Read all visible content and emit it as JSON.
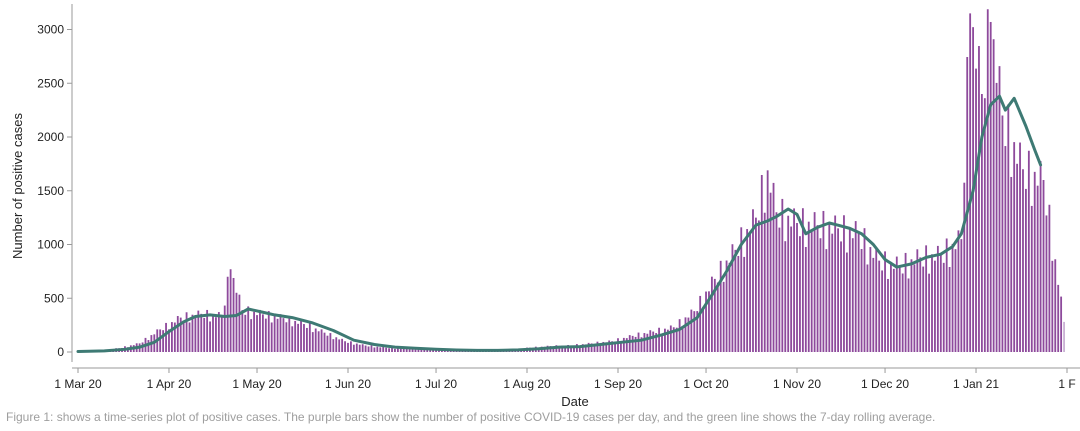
{
  "chart_data": {
    "type": "bar",
    "xlabel": "Date",
    "ylabel": "Number of positive cases",
    "ylim": [
      0,
      3200
    ],
    "y_ticks": [
      0,
      500,
      1000,
      1500,
      2000,
      2500,
      3000
    ],
    "x_range": [
      "2020-03-01",
      "2021-02-01"
    ],
    "x_ticks": [
      {
        "date": "2020-03-01",
        "label": "1 Mar 20"
      },
      {
        "date": "2020-04-01",
        "label": "1 Apr 20"
      },
      {
        "date": "2020-05-01",
        "label": "1 May 20"
      },
      {
        "date": "2020-06-01",
        "label": "1 Jun 20"
      },
      {
        "date": "2020-07-01",
        "label": "1 Jul 20"
      },
      {
        "date": "2020-08-01",
        "label": "1 Aug 20"
      },
      {
        "date": "2020-09-01",
        "label": "1 Sep 20"
      },
      {
        "date": "2020-10-01",
        "label": "1 Oct 20"
      },
      {
        "date": "2020-11-01",
        "label": "1 Nov 20"
      },
      {
        "date": "2020-12-01",
        "label": "1 Dec 20"
      },
      {
        "date": "2021-01-01",
        "label": "1 Jan 21"
      },
      {
        "date": "2021-02-01",
        "label": "1 F"
      }
    ],
    "bar_color": "#8e4a9c",
    "incomplete_bar_color": "#c9b2d3",
    "line_color": "#3e7a74",
    "series": [
      {
        "type": "bar",
        "points": [
          [
            "2020-03-01",
            5
          ],
          [
            "2020-03-08",
            15
          ],
          [
            "2020-03-15",
            35
          ],
          [
            "2020-03-22",
            80
          ],
          [
            "2020-03-29",
            210
          ],
          [
            "2020-04-05",
            320
          ],
          [
            "2020-04-12",
            355
          ],
          [
            "2020-04-19",
            335
          ],
          [
            "2020-04-22",
            770
          ],
          [
            "2020-04-26",
            390
          ],
          [
            "2020-05-03",
            350
          ],
          [
            "2020-05-10",
            315
          ],
          [
            "2020-05-17",
            260
          ],
          [
            "2020-05-24",
            180
          ],
          [
            "2020-05-31",
            100
          ],
          [
            "2020-06-07",
            60
          ],
          [
            "2020-06-14",
            40
          ],
          [
            "2020-06-21",
            30
          ],
          [
            "2020-06-28",
            25
          ],
          [
            "2020-07-05",
            20
          ],
          [
            "2020-07-12",
            18
          ],
          [
            "2020-07-19",
            18
          ],
          [
            "2020-07-26",
            20
          ],
          [
            "2020-08-02",
            40
          ],
          [
            "2020-08-09",
            55
          ],
          [
            "2020-08-16",
            60
          ],
          [
            "2020-08-23",
            80
          ],
          [
            "2020-08-30",
            100
          ],
          [
            "2020-09-06",
            150
          ],
          [
            "2020-09-13",
            190
          ],
          [
            "2020-09-20",
            230
          ],
          [
            "2020-09-27",
            380
          ],
          [
            "2020-10-04",
            680
          ],
          [
            "2020-10-11",
            950
          ],
          [
            "2020-10-18",
            1250
          ],
          [
            "2020-10-22",
            1690
          ],
          [
            "2020-10-25",
            1300
          ],
          [
            "2020-11-01",
            1200
          ],
          [
            "2020-11-08",
            1180
          ],
          [
            "2020-11-15",
            1150
          ],
          [
            "2020-11-22",
            1100
          ],
          [
            "2020-11-29",
            850
          ],
          [
            "2020-12-06",
            800
          ],
          [
            "2020-12-13",
            880
          ],
          [
            "2020-12-20",
            900
          ],
          [
            "2020-12-27",
            1050
          ],
          [
            "2020-12-30",
            3150
          ],
          [
            "2021-01-03",
            2400
          ],
          [
            "2021-01-06",
            3070
          ],
          [
            "2021-01-10",
            2200
          ],
          [
            "2021-01-17",
            1700
          ],
          [
            "2021-01-24",
            1600
          ],
          [
            "2021-01-31",
            280
          ]
        ]
      },
      {
        "type": "line",
        "points": [
          [
            "2020-03-01",
            5
          ],
          [
            "2020-03-10",
            10
          ],
          [
            "2020-03-17",
            25
          ],
          [
            "2020-03-22",
            45
          ],
          [
            "2020-03-27",
            90
          ],
          [
            "2020-04-01",
            190
          ],
          [
            "2020-04-06",
            280
          ],
          [
            "2020-04-10",
            330
          ],
          [
            "2020-04-15",
            345
          ],
          [
            "2020-04-20",
            330
          ],
          [
            "2020-04-24",
            340
          ],
          [
            "2020-04-28",
            400
          ],
          [
            "2020-05-03",
            370
          ],
          [
            "2020-05-07",
            345
          ],
          [
            "2020-05-13",
            320
          ],
          [
            "2020-05-20",
            270
          ],
          [
            "2020-05-27",
            200
          ],
          [
            "2020-06-03",
            110
          ],
          [
            "2020-06-10",
            70
          ],
          [
            "2020-06-17",
            45
          ],
          [
            "2020-06-24",
            35
          ],
          [
            "2020-07-01",
            25
          ],
          [
            "2020-07-08",
            18
          ],
          [
            "2020-07-15",
            15
          ],
          [
            "2020-07-22",
            15
          ],
          [
            "2020-07-29",
            20
          ],
          [
            "2020-08-05",
            30
          ],
          [
            "2020-08-12",
            45
          ],
          [
            "2020-08-19",
            50
          ],
          [
            "2020-08-26",
            70
          ],
          [
            "2020-09-02",
            90
          ],
          [
            "2020-09-09",
            110
          ],
          [
            "2020-09-16",
            160
          ],
          [
            "2020-09-22",
            210
          ],
          [
            "2020-09-28",
            320
          ],
          [
            "2020-10-03",
            530
          ],
          [
            "2020-10-08",
            750
          ],
          [
            "2020-10-13",
            1000
          ],
          [
            "2020-10-18",
            1180
          ],
          [
            "2020-10-22",
            1220
          ],
          [
            "2020-10-25",
            1260
          ],
          [
            "2020-10-29",
            1330
          ],
          [
            "2020-11-01",
            1280
          ],
          [
            "2020-11-04",
            1100
          ],
          [
            "2020-11-08",
            1160
          ],
          [
            "2020-11-12",
            1200
          ],
          [
            "2020-11-15",
            1180
          ],
          [
            "2020-11-19",
            1150
          ],
          [
            "2020-11-23",
            1100
          ],
          [
            "2020-11-27",
            1000
          ],
          [
            "2020-12-01",
            860
          ],
          [
            "2020-12-05",
            790
          ],
          [
            "2020-12-10",
            820
          ],
          [
            "2020-12-15",
            880
          ],
          [
            "2020-12-20",
            910
          ],
          [
            "2020-12-24",
            980
          ],
          [
            "2020-12-27",
            1100
          ],
          [
            "2020-12-31",
            1500
          ],
          [
            "2021-01-03",
            2000
          ],
          [
            "2021-01-06",
            2300
          ],
          [
            "2021-01-09",
            2380
          ],
          [
            "2021-01-11",
            2250
          ],
          [
            "2021-01-14",
            2360
          ],
          [
            "2021-01-18",
            2100
          ],
          [
            "2021-01-21",
            1880
          ],
          [
            "2021-01-23",
            1740
          ]
        ]
      }
    ]
  },
  "caption": "Figure 1: shows a time-series plot of positive cases. The purple bars show the number of positive COVID-19 cases per day, and the green line shows the 7-day rolling average."
}
